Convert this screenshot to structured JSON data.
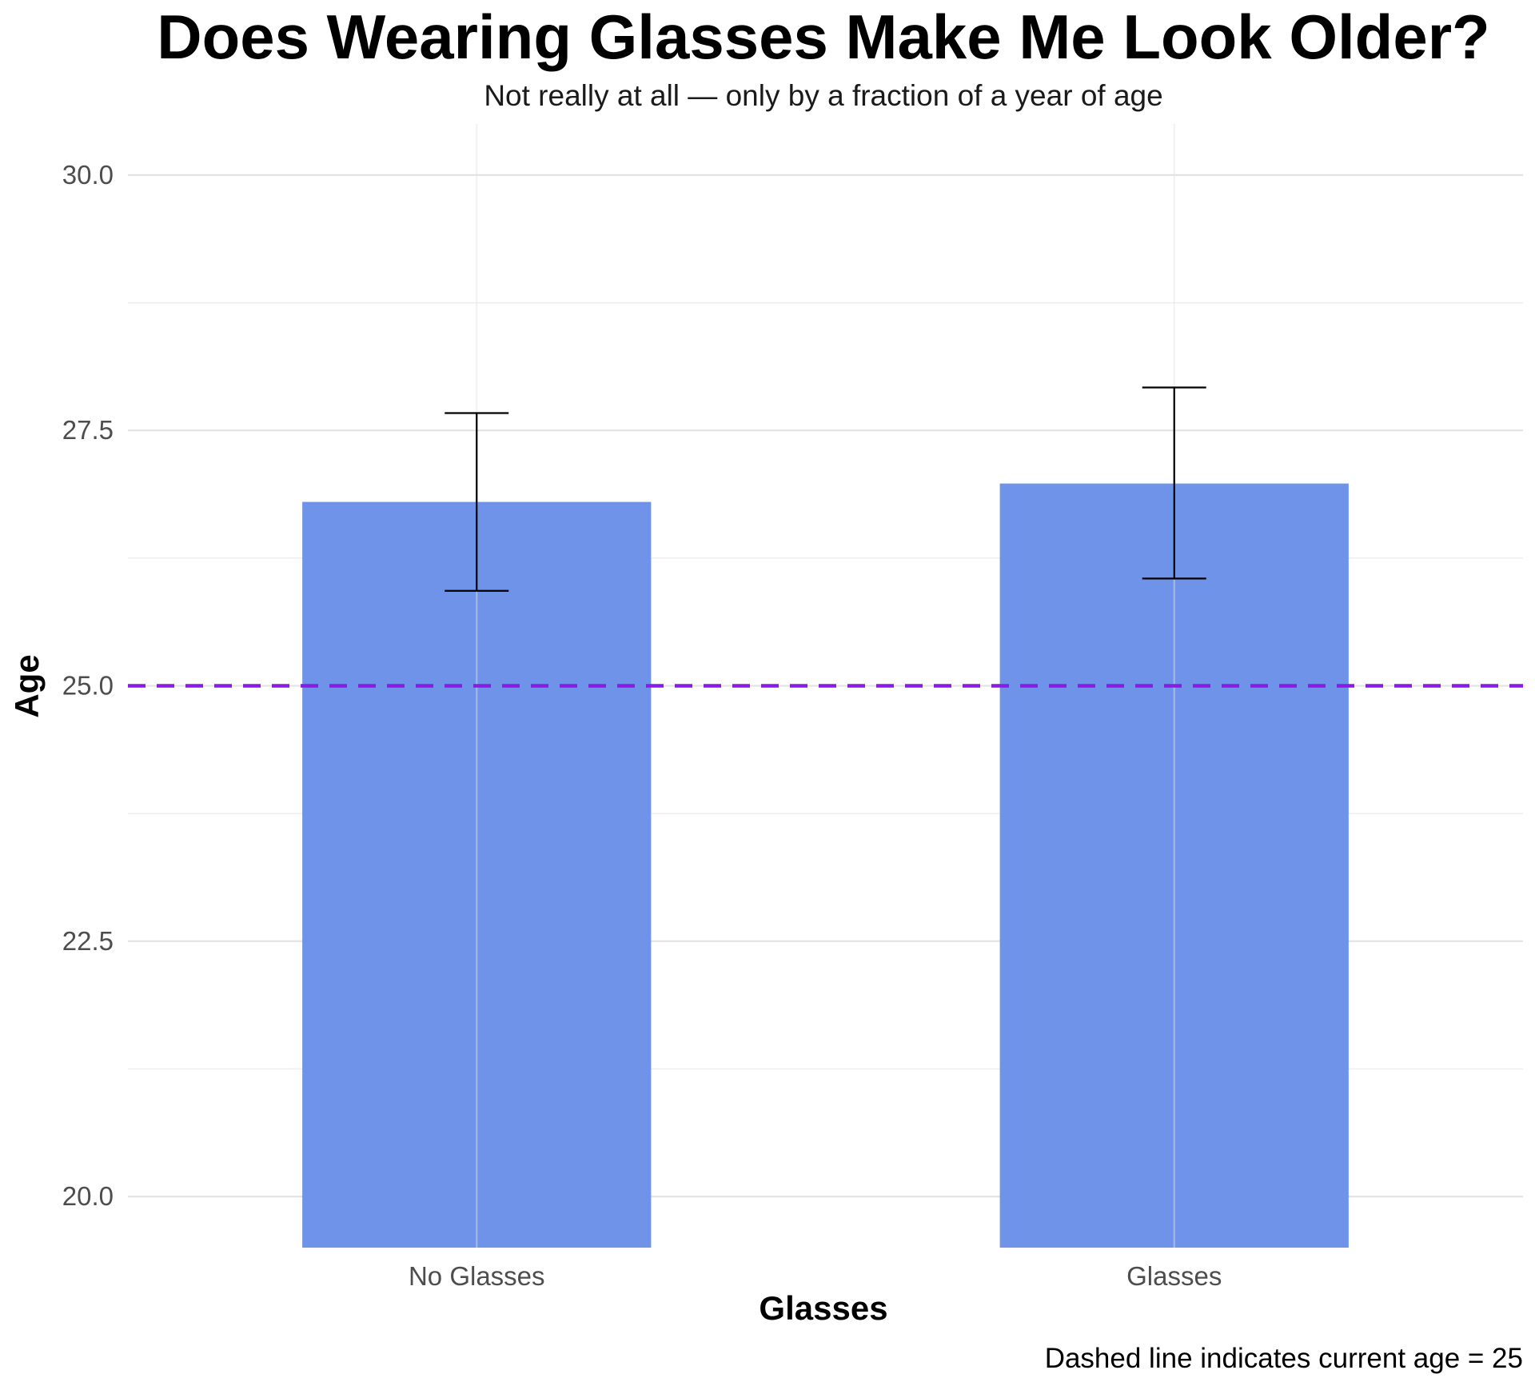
{
  "chart_data": {
    "type": "bar",
    "title": "Does Wearing Glasses Make Me Look Older?",
    "subtitle": "Not really at all — only by a fraction of a year of age",
    "xlabel": "Glasses",
    "ylabel": "Age",
    "caption": "Dashed line indicates current age = 25",
    "categories": [
      "No Glasses",
      "Glasses"
    ],
    "values": [
      26.8,
      26.98
    ],
    "error_low": [
      25.93,
      26.05
    ],
    "error_high": [
      27.67,
      27.92
    ],
    "ylim": [
      19.5,
      30.5
    ],
    "y_ticks": [
      20.0,
      22.5,
      25.0,
      27.5,
      30.0
    ],
    "y_tick_labels": [
      "20.0",
      "22.5",
      "25.0",
      "27.5",
      "30.0"
    ],
    "reference_line": {
      "y": 25,
      "style": "dashed",
      "color": "#8A1BE2"
    },
    "bar_color": "#6F93E8",
    "grid": true,
    "legend": "none"
  }
}
